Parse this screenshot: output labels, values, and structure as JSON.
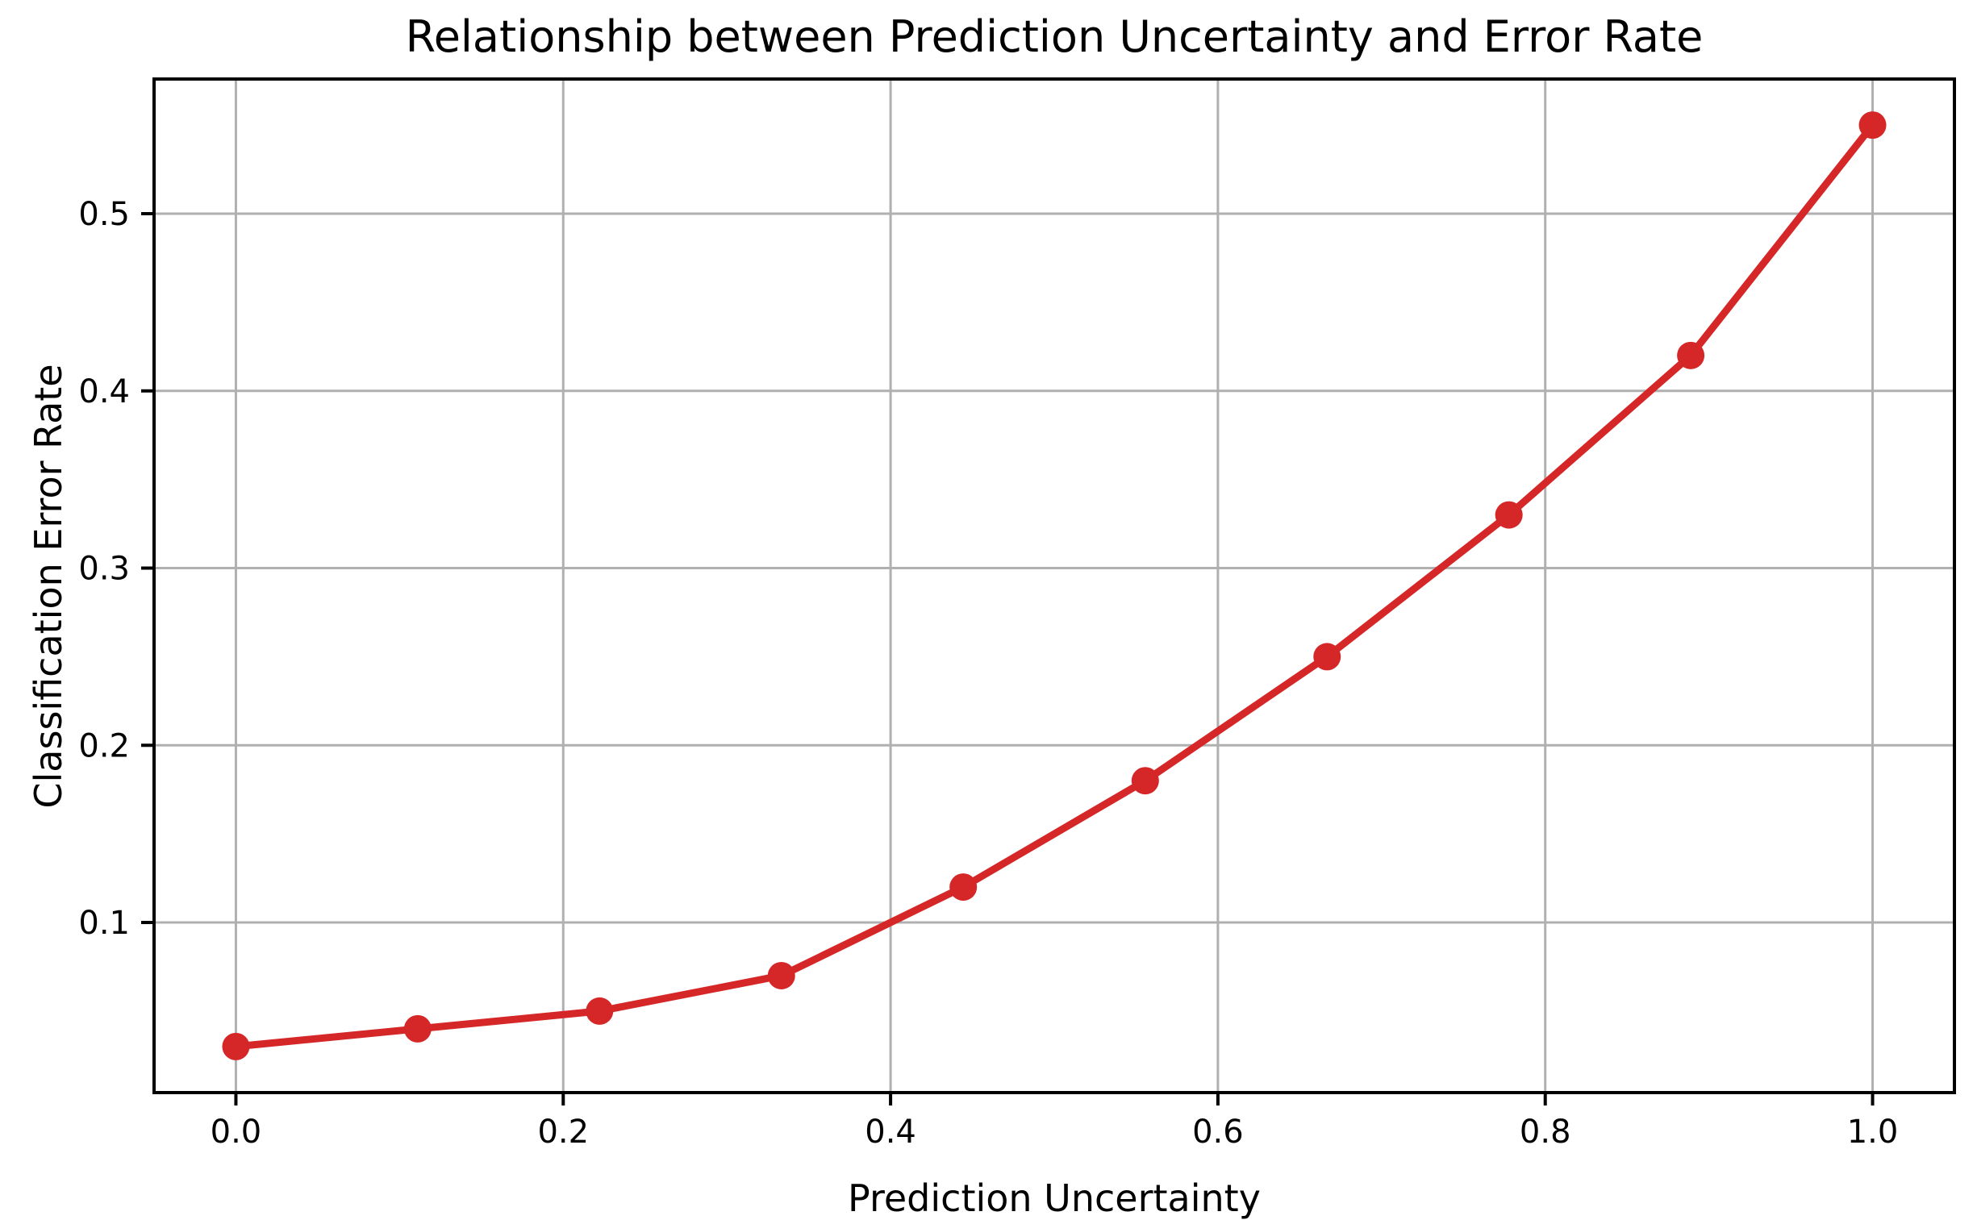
{
  "chart_data": {
    "type": "line",
    "title": "Relationship between Prediction Uncertainty and Error Rate",
    "xlabel": "Prediction Uncertainty",
    "ylabel": "Classification Error Rate",
    "x": [
      0.0,
      0.1111,
      0.2222,
      0.3333,
      0.4444,
      0.5556,
      0.6667,
      0.7778,
      0.8889,
      1.0
    ],
    "y": [
      0.03,
      0.04,
      0.05,
      0.07,
      0.12,
      0.18,
      0.25,
      0.33,
      0.42,
      0.55
    ],
    "xticks": {
      "values": [
        0.0,
        0.2,
        0.4,
        0.6,
        0.8,
        1.0
      ],
      "labels": [
        "0.0",
        "0.2",
        "0.4",
        "0.6",
        "0.8",
        "1.0"
      ]
    },
    "yticks": {
      "values": [
        0.1,
        0.2,
        0.3,
        0.4,
        0.5
      ],
      "labels": [
        "0.1",
        "0.2",
        "0.3",
        "0.4",
        "0.5"
      ]
    },
    "xlim": [
      -0.05,
      1.05
    ],
    "ylim": [
      0.004,
      0.576
    ],
    "grid": true,
    "legend": false,
    "line_color": "#d62728",
    "marker": "o",
    "grid_color": "#b0b0b0",
    "spine_color": "#000000"
  }
}
